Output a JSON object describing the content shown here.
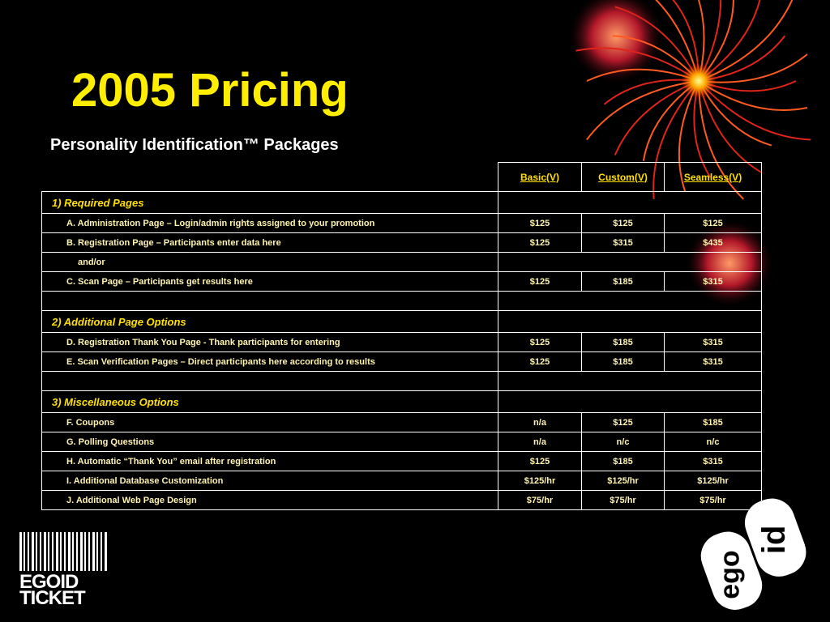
{
  "title": "2005 Pricing",
  "subtitle": "Personality Identification™ Packages",
  "table": {
    "headers": [
      "Basic(V)",
      "Custom(V)",
      "Seamless(V)"
    ],
    "sections": [
      {
        "title": "1) Required Pages",
        "items": [
          {
            "label": "A. Administration Page – Login/admin rights assigned to your promotion",
            "prices": [
              "$125",
              "$125",
              "$125"
            ]
          },
          {
            "label": "B. Registration Page – Participants enter data here",
            "prices": [
              "$125",
              "$315",
              "$435"
            ]
          },
          {
            "label": "and/or"
          },
          {
            "label": "C. Scan Page – Participants get results here",
            "prices": [
              "$125",
              "$185",
              "$315"
            ]
          }
        ]
      },
      {
        "title": "2) Additional Page Options",
        "items": [
          {
            "label": "D. Registration Thank You Page -  Thank participants for entering",
            "prices": [
              "$125",
              "$185",
              "$315"
            ]
          },
          {
            "label": "E. Scan Verification Pages – Direct participants here according to results",
            "prices": [
              "$125",
              "$185",
              "$315"
            ]
          }
        ]
      },
      {
        "title": "3) Miscellaneous Options",
        "items": [
          {
            "label": "F. Coupons",
            "prices": [
              "n/a",
              "$125",
              "$185"
            ]
          },
          {
            "label": "G. Polling Questions",
            "prices": [
              "n/a",
              "n/c",
              "n/c"
            ]
          },
          {
            "label": "H. Automatic “Thank You” email after registration",
            "prices": [
              "$125",
              "$185",
              "$315"
            ]
          },
          {
            "label": "I. Additional Database Customization",
            "prices": [
              "$125/hr",
              "$125/hr",
              "$125/hr"
            ]
          },
          {
            "label": "J. Additional Web Page Design",
            "prices": [
              "$75/hr",
              "$75/hr",
              "$75/hr"
            ]
          }
        ]
      }
    ]
  },
  "logos": {
    "left": [
      "EGOID",
      "TICKET"
    ],
    "right": [
      "ego",
      "id"
    ]
  }
}
